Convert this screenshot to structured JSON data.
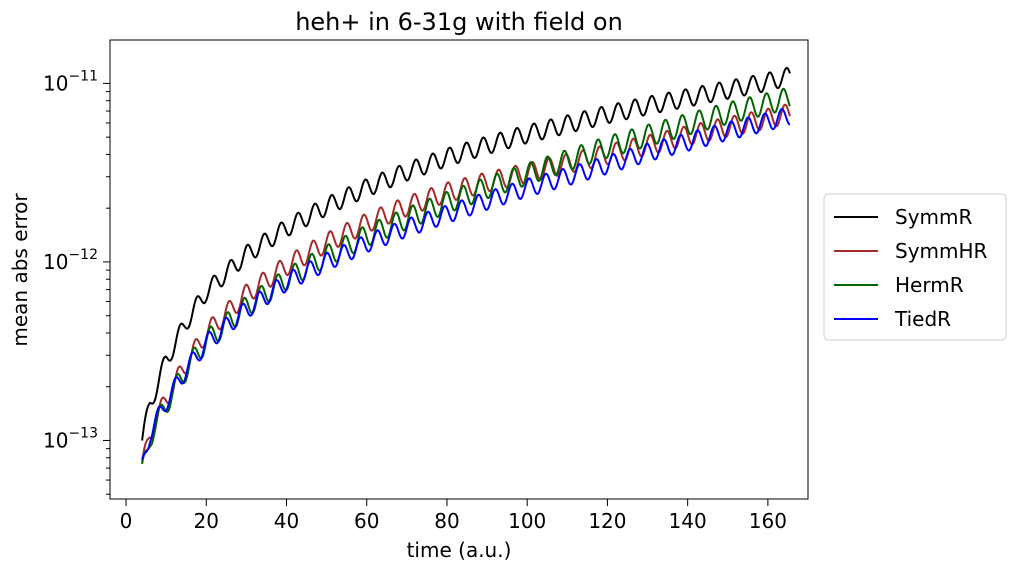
{
  "chart_data": {
    "type": "line",
    "title": "heh+ in 6-31g with field on",
    "xlabel": "time (a.u.)",
    "ylabel": "mean abs error",
    "xlim": [
      -4,
      170
    ],
    "ylim": [
      4.7e-14,
      1.75e-11
    ],
    "yscale": "log",
    "grid": false,
    "legend_position": "outside-right",
    "x_ticks": [
      0,
      20,
      40,
      60,
      80,
      100,
      120,
      140,
      160
    ],
    "y_ticks": [
      {
        "value": 1e-13,
        "base": "10",
        "exp": "−13"
      },
      {
        "value": 1e-12,
        "base": "10",
        "exp": "−12"
      },
      {
        "value": 1e-11,
        "base": "10",
        "exp": "−11"
      }
    ],
    "x_start": 4,
    "x_end": 165.5,
    "series": [
      {
        "name": "SymmR",
        "color": "#000000",
        "oscillation": 0.05,
        "x": [
          4,
          6,
          10,
          15,
          20,
          30,
          40,
          50,
          60,
          70,
          80,
          90,
          100,
          110,
          120,
          130,
          140,
          150,
          160,
          165.5
        ],
        "values": [
          1e-13,
          1.6e-13,
          2.8e-13,
          4.6e-13,
          6.8e-13,
          1.1e-12,
          1.55e-12,
          2.05e-12,
          2.6e-12,
          3.2e-12,
          3.85e-12,
          4.5e-12,
          5.2e-12,
          5.9e-12,
          6.7e-12,
          7.5e-12,
          8.3e-12,
          9.2e-12,
          1.02e-11,
          1.1e-11
        ]
      },
      {
        "name": "SymmHR",
        "color": "#a52a2a",
        "oscillation": 0.055,
        "x": [
          4,
          6,
          10,
          15,
          20,
          30,
          40,
          50,
          60,
          70,
          80,
          90,
          100,
          110,
          120,
          130,
          140,
          150,
          160,
          165.5
        ],
        "values": [
          7e-14,
          1.1e-13,
          1.7e-13,
          2.7e-13,
          4e-13,
          6.6e-13,
          9.5e-13,
          1.28e-12,
          1.65e-12,
          2.05e-12,
          2.45e-12,
          2.8e-12,
          3.15e-12,
          3.55e-12,
          4e-12,
          4.5e-12,
          5.1e-12,
          5.7e-12,
          6.35e-12,
          6.8e-12
        ]
      },
      {
        "name": "HermR",
        "color": "#006400",
        "oscillation": 0.06,
        "x": [
          4,
          6,
          10,
          15,
          20,
          30,
          40,
          50,
          60,
          70,
          80,
          90,
          100,
          110,
          120,
          130,
          140,
          150,
          160,
          165.5
        ],
        "values": [
          6.5e-14,
          1.05e-13,
          1.6e-13,
          2.5e-13,
          3.6e-13,
          5.6e-13,
          8e-13,
          1.08e-12,
          1.4e-12,
          1.75e-12,
          2.15e-12,
          2.6e-12,
          3.1e-12,
          3.7e-12,
          4.4e-12,
          5.1e-12,
          5.9e-12,
          6.8e-12,
          7.7e-12,
          8.3e-12
        ]
      },
      {
        "name": "TiedR",
        "color": "#0000ff",
        "oscillation": 0.05,
        "x": [
          4,
          6,
          10,
          15,
          20,
          30,
          40,
          50,
          60,
          70,
          80,
          90,
          100,
          110,
          120,
          130,
          140,
          150,
          160,
          165.5
        ],
        "values": [
          7e-14,
          1.1e-13,
          1.65e-13,
          2.5e-13,
          3.5e-13,
          5.4e-13,
          7.7e-13,
          1e-12,
          1.27e-12,
          1.55e-12,
          1.85e-12,
          2.2e-12,
          2.6e-12,
          3e-12,
          3.5e-12,
          4.1e-12,
          4.7e-12,
          5.4e-12,
          6.1e-12,
          6.6e-12
        ]
      }
    ]
  }
}
